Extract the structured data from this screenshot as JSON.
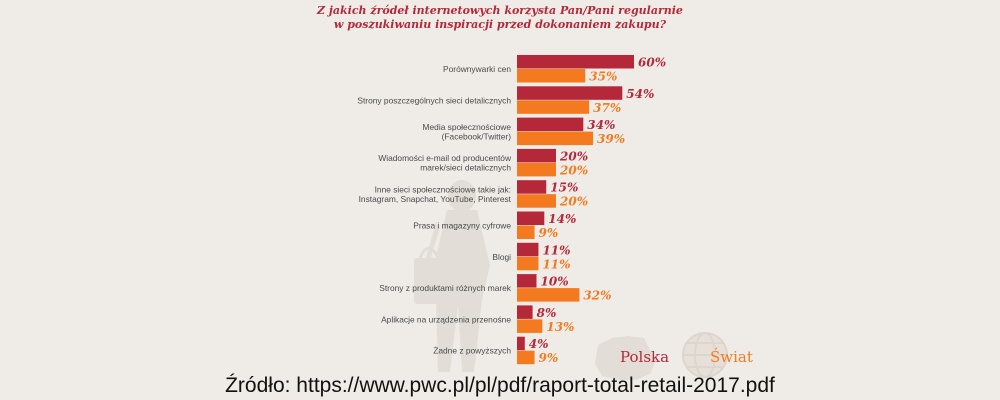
{
  "chart_data": {
    "type": "bar",
    "orientation": "horizontal",
    "title_lines": [
      "Z jakich źródeł internetowych korzysta Pan/Pani regularnie",
      "w poszukiwaniu inspiracji przed dokonaniem zakupu?"
    ],
    "categories": [
      [
        "Porównywarki cen"
      ],
      [
        "Strony poszczególnych sieci detalicznych"
      ],
      [
        "Media społecznościowe",
        "(Facebook/Twitter)"
      ],
      [
        "Wiadomości e-mail od producentów",
        "marek/sieci detalicznych"
      ],
      [
        "Inne sieci społecznościowe takie jak:",
        "Instagram, Snapchat, YouTube, Pinterest"
      ],
      [
        "Prasa i magazyny cyfrowe"
      ],
      [
        "Blogi"
      ],
      [
        "Strony z produktami różnych marek"
      ],
      [
        "Aplikacje na urządzenia przenośne"
      ],
      [
        "Żadne z powyższych"
      ]
    ],
    "series": [
      {
        "name": "Polska",
        "color": "#b5283a",
        "values": [
          60,
          54,
          34,
          20,
          15,
          14,
          11,
          10,
          8,
          4
        ]
      },
      {
        "name": "Świat",
        "color": "#f47a20",
        "values": [
          35,
          37,
          39,
          20,
          20,
          9,
          11,
          32,
          13,
          9
        ]
      }
    ],
    "value_suffix": "%",
    "xlim": [
      0,
      60
    ],
    "grid": false,
    "legend_position": "bottom-right"
  },
  "source": "Źródło: https://www.pwc.pl/pl/pdf/raport-total-retail-2017.pdf"
}
